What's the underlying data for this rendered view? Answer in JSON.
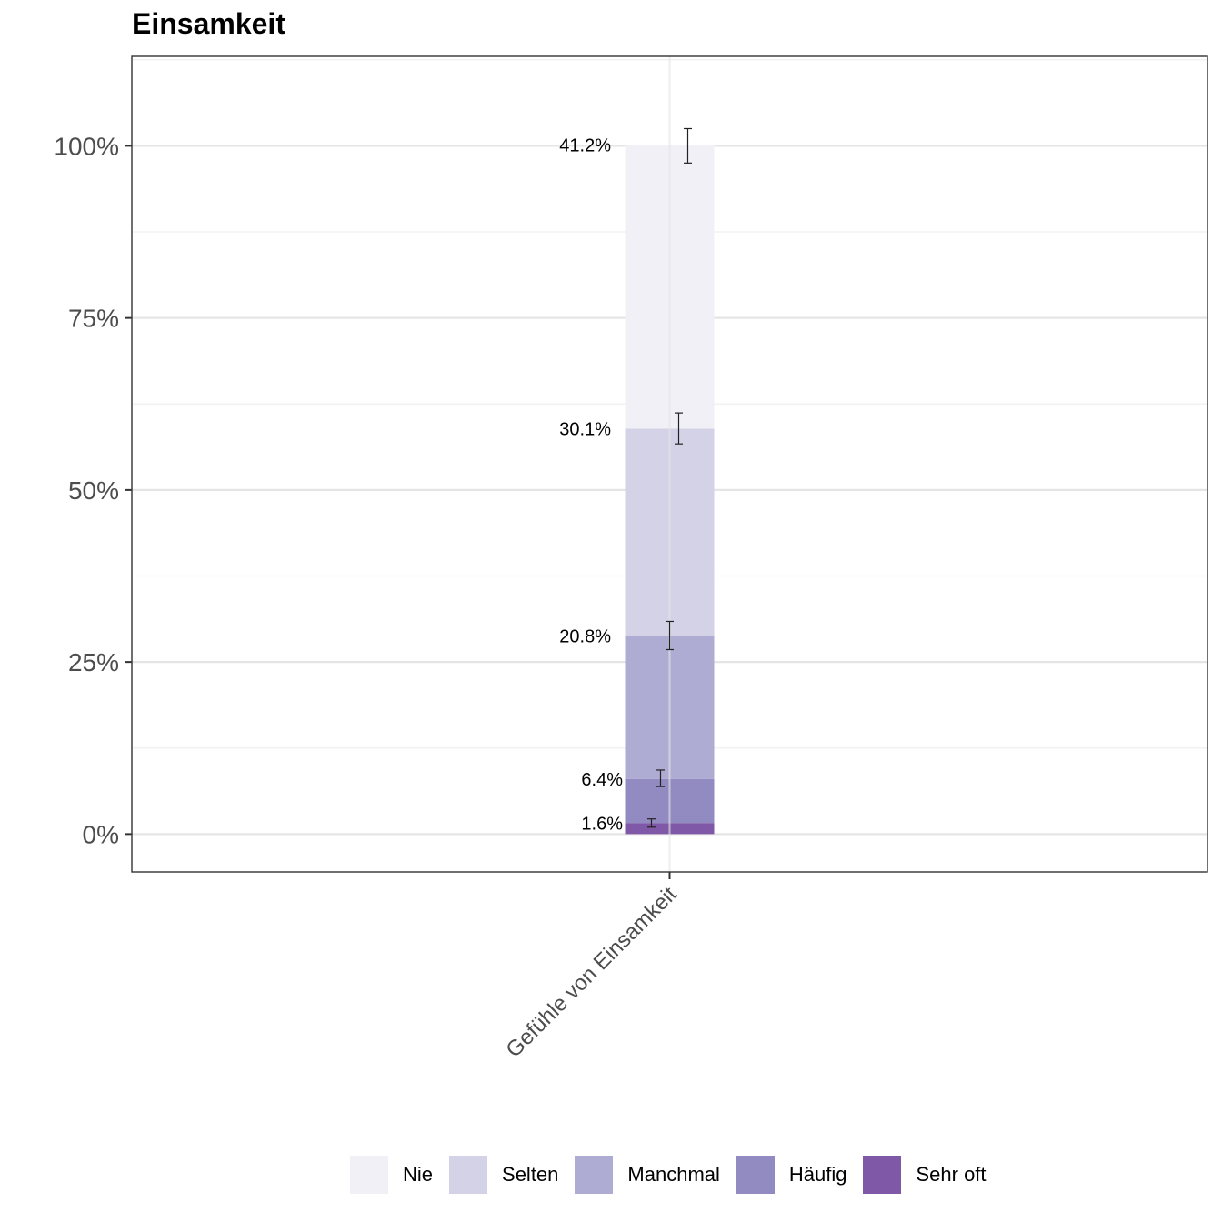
{
  "chart_data": {
    "type": "bar",
    "stacked": true,
    "title": "Einsamkeit",
    "xlabel": "",
    "ylabel": "",
    "categories": [
      "Gefühle von Einsamkeit"
    ],
    "ylim": [
      -0.055,
      1.13
    ],
    "yticks": [
      0,
      0.25,
      0.5,
      0.75,
      1.0
    ],
    "ytick_labels": [
      "0%",
      "25%",
      "50%",
      "75%",
      "100%"
    ],
    "grid": true,
    "legend_position": "bottom",
    "series": [
      {
        "name": "Nie",
        "color": "#f2f0f7",
        "values": [
          0.412
        ],
        "label": "41.2%",
        "error": [
          0.975,
          1.025
        ]
      },
      {
        "name": "Selten",
        "color": "#d4d2e7",
        "values": [
          0.301
        ],
        "label": "30.1%",
        "error": [
          0.567,
          0.612
        ]
      },
      {
        "name": "Manchmal",
        "color": "#aeacd2",
        "values": [
          0.208
        ],
        "label": "20.8%",
        "error": [
          0.268,
          0.309
        ]
      },
      {
        "name": "Häufig",
        "color": "#928bc1",
        "values": [
          0.064
        ],
        "label": "6.4%",
        "error": [
          0.069,
          0.093
        ]
      },
      {
        "name": "Sehr oft",
        "color": "#7f59a8",
        "values": [
          0.016
        ],
        "label": "1.6%",
        "error": [
          0.01,
          0.022
        ]
      }
    ]
  }
}
